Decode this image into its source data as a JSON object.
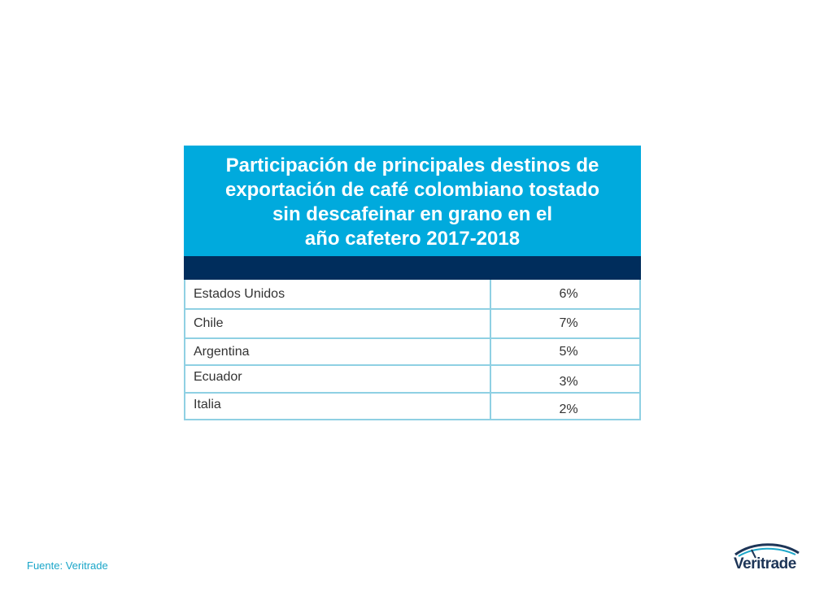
{
  "chart_data": {
    "type": "table",
    "title_lines": [
      "Participación de principales destinos de",
      "exportación de café colombiano tostado",
      "sin descafeinar en grano en el",
      "año cafetero 2017-2018"
    ],
    "rows": [
      {
        "country": "Estados Unidos",
        "share": "6%"
      },
      {
        "country": "Chile",
        "share": "7%"
      },
      {
        "country": "Argentina",
        "share": "5%"
      },
      {
        "country": "Ecuador",
        "share": "3%"
      },
      {
        "country": "Italia",
        "share": "2%"
      }
    ],
    "colors": {
      "title_bg": "#00aadd",
      "header_bg": "#002d5c",
      "grid": "#8fd0e3"
    }
  },
  "footer": {
    "source": "Fuente: Veritrade"
  },
  "logo": {
    "text": "Veritrade",
    "icon": "veritrade-swoosh-icon"
  }
}
